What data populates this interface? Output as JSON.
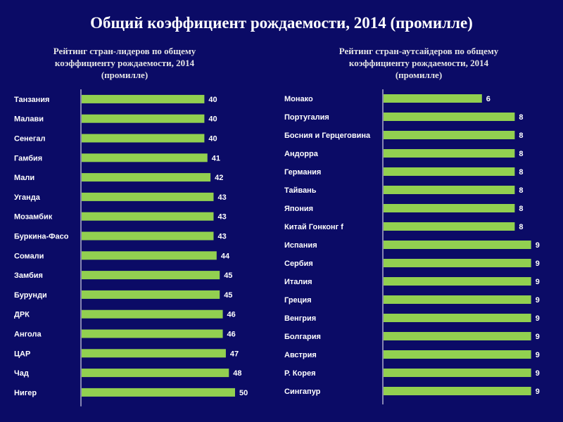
{
  "title": "Общий коэффициент рождаемости, 2014 (промилле)",
  "chart_data": [
    {
      "type": "bar",
      "orientation": "horizontal",
      "title": "Рейтинг стран-лидеров по общему\nкоэффициенту рождаемости, 2014\n(промилле)",
      "categories": [
        "Танзания",
        "Малави",
        "Сенегал",
        "Гамбия",
        "Мали",
        "Уганда",
        "Мозамбик",
        "Буркина-Фасо",
        "Сомали",
        "Замбия",
        "Бурунди",
        "ДРК",
        "Ангола",
        "ЦАР",
        "Чад",
        "Нигер"
      ],
      "values": [
        40,
        40,
        40,
        41,
        42,
        43,
        43,
        43,
        44,
        45,
        45,
        46,
        46,
        47,
        48,
        50
      ],
      "bar_color": "#92d050",
      "grid": false
    },
    {
      "type": "bar",
      "orientation": "horizontal",
      "title": "Рейтинг стран-аутсайдеров по общему\nкоэффициенту рождаемости, 2014\n(промилле)",
      "categories": [
        "Монако",
        "Португалия",
        "Босния и Герцеговина",
        "Андорра",
        "Германия",
        "Тайвань",
        "Япония",
        "Китай   Гонконг f",
        "Испания",
        "Сербия",
        "Италия",
        "Греция",
        "Венгрия",
        "Болгария",
        "Австрия",
        "Р. Корея",
        "Сингапур"
      ],
      "values": [
        6,
        8,
        8,
        8,
        8,
        8,
        8,
        8,
        9,
        9,
        9,
        9,
        9,
        9,
        9,
        9,
        9
      ],
      "bar_color": "#92d050",
      "grid": false
    }
  ]
}
